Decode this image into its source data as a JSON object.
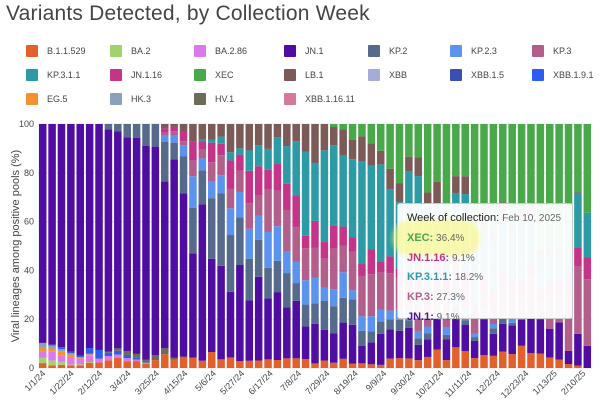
{
  "chart_data": {
    "type": "bar",
    "stacked": true,
    "title": "Variants Detected, by Collection Week",
    "ylabel": "Viral lineages among positive pools (%)",
    "xlabel": "",
    "ylim": [
      0,
      100
    ],
    "yticks": [
      0,
      20,
      40,
      60,
      80,
      100
    ],
    "xtick_labels": [
      "1/1/24",
      "1/22/24",
      "2/12/24",
      "3/4/24",
      "3/25/24",
      "4/15/24",
      "5/6/24",
      "5/27/24",
      "6/17/24",
      "7/8/24",
      "7/29/24",
      "8/19/24",
      "9/9/24",
      "9/30/24",
      "10/21/24",
      "11/11/24",
      "12/2/24",
      "12/23/24",
      "1/13/25",
      "2/10/25"
    ],
    "legend_placement": "top",
    "grid": true,
    "series": [
      {
        "name": "B.1.1.529",
        "color": "#e2602b"
      },
      {
        "name": "BA.2",
        "color": "#a2d36b"
      },
      {
        "name": "BA.2.86",
        "color": "#dd77ee"
      },
      {
        "name": "JN.1",
        "color": "#4f0da1"
      },
      {
        "name": "KP.2",
        "color": "#566b8c"
      },
      {
        "name": "KP.2.3",
        "color": "#5b93ee"
      },
      {
        "name": "KP.3",
        "color": "#b35f8c"
      },
      {
        "name": "KP.3.1.1",
        "color": "#2c9ba5"
      },
      {
        "name": "JN.1.16",
        "color": "#c43488"
      },
      {
        "name": "XEC",
        "color": "#48a84a"
      },
      {
        "name": "LB.1",
        "color": "#7b5a57"
      },
      {
        "name": "XBB",
        "color": "#a5acdc"
      },
      {
        "name": "XBB.1.5",
        "color": "#3c50b3"
      },
      {
        "name": "XBB.1.9.1",
        "color": "#2e5cf3"
      },
      {
        "name": "EG.5",
        "color": "#f49232"
      },
      {
        "name": "HK.3",
        "color": "#8aa0bb"
      },
      {
        "name": "HV.1",
        "color": "#6b6b57"
      },
      {
        "name": "XBB.1.16.11",
        "color": "#d77896"
      }
    ],
    "weekly_composition_estimate": {
      "n_weeks": 59,
      "keypoints": [
        {
          "week": 0,
          "values": {
            "B.1.1.529": 2,
            "BA.2": 2,
            "BA.2.86": 4,
            "JN.1": 88,
            "EG.5": 2,
            "HK.3": 2
          }
        },
        {
          "week": 6,
          "values": {
            "B.1.1.529": 2,
            "BA.2.86": 2,
            "JN.1": 94,
            "XBB.1.9.1": 2
          }
        },
        {
          "week": 12,
          "values": {
            "B.1.1.529": 3,
            "JN.1": 85,
            "KP.2": 10,
            "HV.1": 2
          }
        },
        {
          "week": 16,
          "values": {
            "B.1.1.529": 4,
            "JN.1": 55,
            "KP.2": 20,
            "KP.2.3": 8,
            "KP.3": 4,
            "JN.1.16": 5,
            "LB.1": 4
          }
        },
        {
          "week": 20,
          "values": {
            "B.1.1.529": 4,
            "JN.1": 35,
            "KP.2": 20,
            "KP.2.3": 10,
            "KP.3": 12,
            "JN.1.16": 8,
            "KP.3.1.1": 3,
            "LB.1": 8
          }
        },
        {
          "week": 24,
          "values": {
            "B.1.1.529": 3,
            "JN.1": 25,
            "KP.2": 15,
            "KP.2.3": 12,
            "KP.3": 15,
            "JN.1.16": 10,
            "KP.3.1.1": 10,
            "LB.1": 10
          }
        },
        {
          "week": 30,
          "values": {
            "B.1.1.529": 3,
            "JN.1": 15,
            "KP.2": 10,
            "KP.2.3": 8,
            "KP.3": 15,
            "JN.1.16": 8,
            "KP.3.1.1": 30,
            "LB.1": 11
          }
        },
        {
          "week": 36,
          "values": {
            "B.1.1.529": 2,
            "JN.1": 10,
            "KP.2": 5,
            "KP.2.3": 4,
            "KP.3": 14,
            "JN.1.16": 6,
            "KP.3.1.1": 40,
            "XEC": 10,
            "LB.1": 9
          }
        },
        {
          "week": 42,
          "values": {
            "B.1.1.529": 5,
            "JN.1": 10,
            "KP.2": 2,
            "KP.2.3": 3,
            "KP.3": 10,
            "JN.1.16": 6,
            "KP.3.1.1": 30,
            "XEC": 28,
            "LB.1": 6
          }
        },
        {
          "week": 48,
          "values": {
            "B.1.1.529": 6,
            "JN.1": 12,
            "KP.2": 2,
            "KP.2.3": 2,
            "KP.3": 8,
            "JN.1.16": 5,
            "KP.3.1.1": 20,
            "XEC": 40,
            "LB.1": 5
          }
        },
        {
          "week": 54,
          "values": {
            "B.1.1.529": 5,
            "JN.1": 14,
            "KP.3": 12,
            "JN.1.16": 6,
            "KP.3.1.1": 10,
            "XEC": 50,
            "LB.1": 3
          }
        },
        {
          "week": 58,
          "values": {
            "JN.1": 9.1,
            "KP.3": 27.3,
            "JN.1.16": 9.1,
            "KP.3.1.1": 18.2,
            "XEC": 36.4
          }
        }
      ]
    },
    "tooltip": {
      "header_label": "Week of collection:",
      "date": "Feb 10, 2025",
      "entries": [
        {
          "name": "XEC",
          "value": "36.4%",
          "color": "#48a84a"
        },
        {
          "name": "JN.1.16",
          "value": "9.1%",
          "color": "#c43488"
        },
        {
          "name": "KP.3.1.1",
          "value": "18.2%",
          "color": "#2c9ba5"
        },
        {
          "name": "KP.3",
          "value": "27.3%",
          "color": "#b35f8c"
        },
        {
          "name": "JN.1",
          "value": "9.1%",
          "color": "#4f0da1"
        }
      ]
    }
  }
}
